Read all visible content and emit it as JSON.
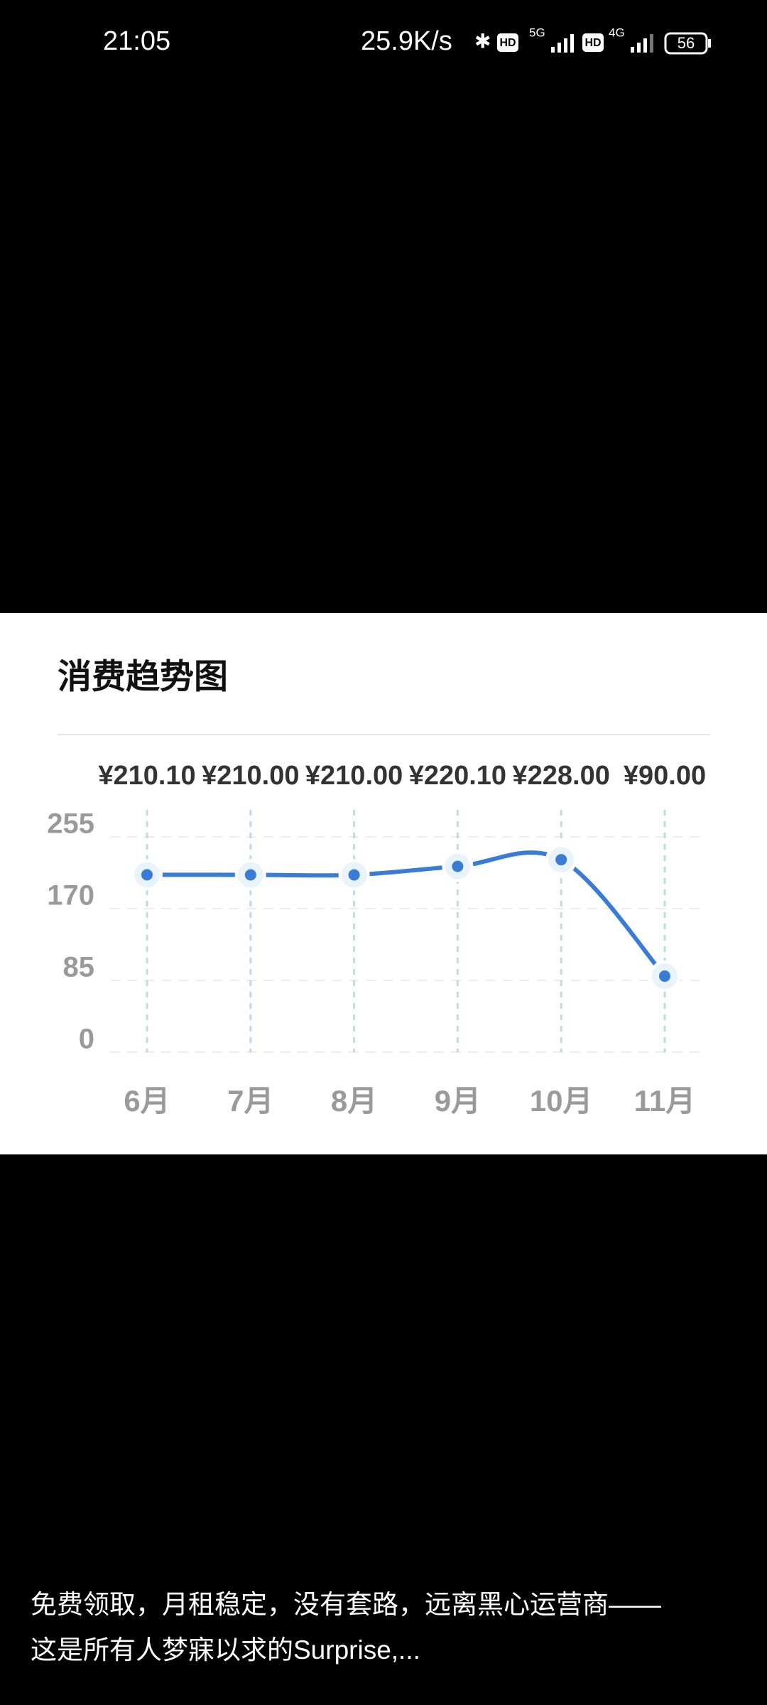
{
  "status_bar": {
    "time": "21:05",
    "speed": "25.9K/s",
    "hd1": "HD",
    "net1": "5G",
    "hd2": "HD",
    "net2": "4G",
    "battery": "56"
  },
  "chart_data": {
    "type": "line",
    "title": "消费趋势图",
    "categories": [
      "6月",
      "7月",
      "8月",
      "9月",
      "10月",
      "11月"
    ],
    "values": [
      210.1,
      210,
      210,
      220.1,
      228,
      90
    ],
    "value_labels": [
      "¥210.10",
      "¥210.00",
      "¥210.00",
      "¥220.10",
      "¥228.00",
      "¥90.00"
    ],
    "color": "#3a7bd5",
    "ylim": [
      0,
      255
    ],
    "yticks": [
      0,
      85,
      170,
      255
    ],
    "grid": true
  },
  "caption": [
    "免费领取，月租稳定，没有套路，远离黑心运营商——",
    "这是所有人梦寐以求的Surprise,..."
  ]
}
